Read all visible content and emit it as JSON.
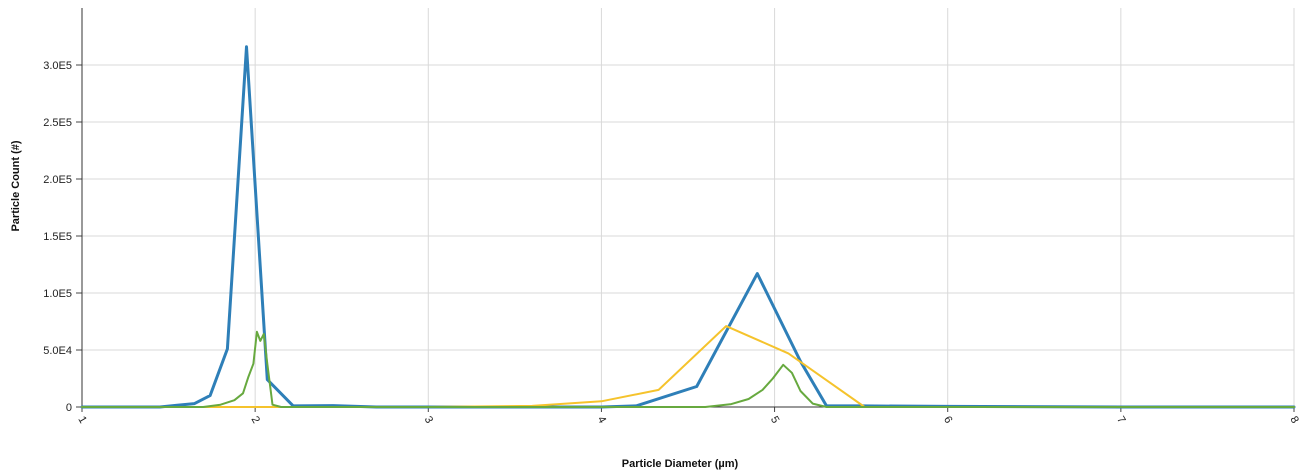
{
  "chart_data": {
    "type": "line",
    "title": "",
    "xlabel": "Particle Diameter (µm)",
    "ylabel": "Particle Count (#)",
    "xlim": [
      1,
      8
    ],
    "ylim": [
      0,
      350000
    ],
    "x_ticks": [
      1,
      2,
      3,
      4,
      5,
      6,
      7,
      8
    ],
    "x_tick_labels": [
      "1",
      "2",
      "3",
      "4",
      "5",
      "6",
      "7",
      "8"
    ],
    "y_ticks": [
      0,
      50000,
      100000,
      150000,
      200000,
      250000,
      300000
    ],
    "y_tick_labels": [
      "0",
      "5.0E4",
      "1.0E5",
      "1.5E5",
      "2.0E5",
      "2.5E5",
      "3.0E5"
    ],
    "grid": true,
    "legend": "none",
    "series": [
      {
        "color": "#2e7fb8",
        "line_width": 3,
        "points": [
          [
            1.0,
            0
          ],
          [
            1.45,
            0
          ],
          [
            1.55,
            1500
          ],
          [
            1.65,
            3000
          ],
          [
            1.74,
            10000
          ],
          [
            1.84,
            51000
          ],
          [
            1.95,
            316000
          ],
          [
            2.07,
            24000
          ],
          [
            2.22,
            1000
          ],
          [
            2.45,
            1200
          ],
          [
            2.7,
            0
          ],
          [
            4.0,
            0
          ],
          [
            4.2,
            1000
          ],
          [
            4.55,
            18000
          ],
          [
            4.9,
            117000
          ],
          [
            5.15,
            40000
          ],
          [
            5.3,
            1000
          ],
          [
            5.5,
            1000
          ],
          [
            6.0,
            500
          ],
          [
            7.0,
            0
          ],
          [
            8.0,
            0
          ]
        ]
      },
      {
        "color": "#f5c32c",
        "line_width": 2,
        "points": [
          [
            1.0,
            0
          ],
          [
            3.0,
            0
          ],
          [
            3.6,
            1000
          ],
          [
            4.0,
            5000
          ],
          [
            4.33,
            15000
          ],
          [
            4.72,
            71000
          ],
          [
            5.08,
            47000
          ],
          [
            5.52,
            0
          ],
          [
            8.0,
            0
          ]
        ]
      },
      {
        "color": "#67a93f",
        "line_width": 2,
        "points": [
          [
            1.0,
            0
          ],
          [
            1.7,
            0
          ],
          [
            1.8,
            2000
          ],
          [
            1.88,
            6000
          ],
          [
            1.93,
            12000
          ],
          [
            1.96,
            26000
          ],
          [
            1.99,
            38000
          ],
          [
            2.01,
            66000
          ],
          [
            2.03,
            58000
          ],
          [
            2.05,
            64000
          ],
          [
            2.07,
            38000
          ],
          [
            2.1,
            2000
          ],
          [
            2.15,
            0
          ],
          [
            4.6,
            0
          ],
          [
            4.75,
            2500
          ],
          [
            4.85,
            7000
          ],
          [
            4.93,
            15000
          ],
          [
            4.99,
            25000
          ],
          [
            5.05,
            37000
          ],
          [
            5.1,
            30000
          ],
          [
            5.15,
            14000
          ],
          [
            5.22,
            3000
          ],
          [
            5.3,
            0
          ],
          [
            6.0,
            0
          ],
          [
            8.0,
            0
          ]
        ]
      }
    ]
  }
}
